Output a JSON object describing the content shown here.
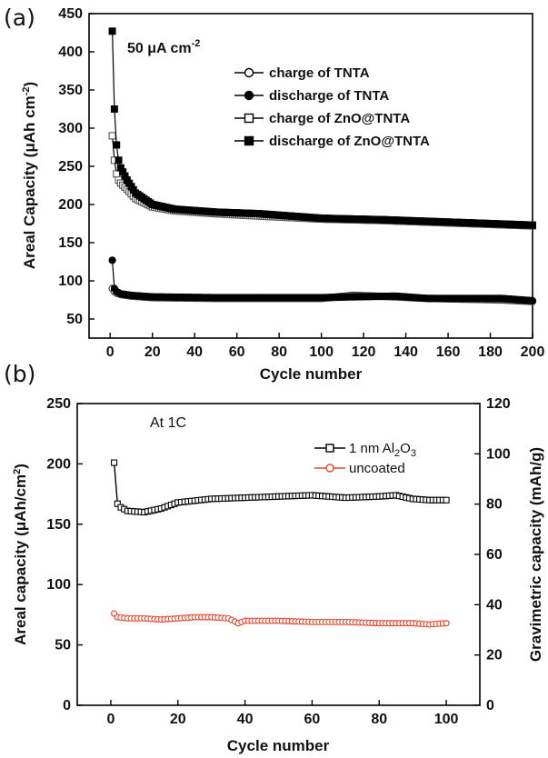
{
  "panel_labels": {
    "a": "(a)",
    "b": "(b)"
  },
  "chart_data": [
    {
      "type": "scatter",
      "panel": "(a)",
      "annotation": "50 μA cm-2",
      "xlabel": "Cycle number",
      "ylabel": "Areal Capacity (μAh cm-2)",
      "xlim": [
        -10,
        200
      ],
      "ylim": [
        25,
        450
      ],
      "xticks": [
        0,
        20,
        40,
        60,
        80,
        100,
        120,
        140,
        160,
        180,
        200
      ],
      "yticks": [
        50,
        100,
        150,
        200,
        250,
        300,
        350,
        400,
        450
      ],
      "grid": false,
      "legend_position": "top-right",
      "series": [
        {
          "name": "charge of TNTA",
          "marker": "open-circle",
          "x": [
            1,
            2,
            3,
            5,
            10,
            20,
            50,
            100,
            115,
            135,
            150,
            185,
            200
          ],
          "y": [
            90,
            86,
            84,
            82,
            80,
            78,
            77,
            77,
            81,
            79,
            77,
            75,
            73
          ]
        },
        {
          "name": "discharge of TNTA",
          "marker": "filled-circle",
          "x": [
            1,
            2,
            3,
            5,
            10,
            20,
            50,
            100,
            115,
            135,
            150,
            185,
            200
          ],
          "y": [
            127,
            90,
            86,
            83,
            81,
            79,
            78,
            78,
            79,
            80,
            77,
            77,
            74
          ]
        },
        {
          "name": "charge of ZnO@TNTA",
          "marker": "open-square",
          "x": [
            1,
            2,
            3,
            4,
            5,
            8,
            12,
            20,
            30,
            50,
            70,
            100,
            130,
            160,
            200
          ],
          "y": [
            290,
            258,
            240,
            232,
            228,
            220,
            208,
            197,
            192,
            188,
            185,
            181,
            179,
            176,
            172
          ]
        },
        {
          "name": "discharge of ZnO@TNTA",
          "marker": "filled-square",
          "x": [
            1,
            2,
            3,
            4,
            5,
            8,
            12,
            20,
            30,
            50,
            70,
            100,
            130,
            160,
            200
          ],
          "y": [
            427,
            325,
            278,
            258,
            248,
            232,
            215,
            200,
            194,
            190,
            188,
            182,
            180,
            177,
            173
          ]
        }
      ]
    },
    {
      "type": "line",
      "panel": "(b)",
      "annotation": "At 1C",
      "xlabel": "Cycle number",
      "ylabel": "Areal capacity (μAh/cm2)",
      "ylabel_right": "Gravimetric capacity (mAh/g)",
      "xlim": [
        -10,
        110
      ],
      "ylim": [
        0,
        250
      ],
      "ylim_right": [
        0,
        120
      ],
      "xticks": [
        0,
        20,
        40,
        60,
        80,
        100
      ],
      "yticks": [
        0,
        50,
        100,
        150,
        200,
        250
      ],
      "yticks_right": [
        0,
        20,
        40,
        60,
        80,
        100,
        120
      ],
      "grid": false,
      "legend_position": "top-right",
      "series": [
        {
          "name": "1 nm Al2O3",
          "color": "#000000",
          "marker": "open-square",
          "x": [
            1,
            2,
            3,
            5,
            10,
            15,
            20,
            30,
            40,
            50,
            60,
            70,
            80,
            85,
            90,
            95,
            100
          ],
          "y": [
            201,
            167,
            164,
            161,
            160,
            163,
            168,
            171,
            172,
            173,
            174,
            172,
            173,
            174,
            171,
            170,
            170
          ]
        },
        {
          "name": "uncoated",
          "color": "#e8452c",
          "marker": "open-circle",
          "x": [
            1,
            2,
            5,
            10,
            15,
            20,
            25,
            30,
            35,
            38,
            40,
            45,
            50,
            60,
            70,
            80,
            90,
            95,
            100
          ],
          "y": [
            76,
            73,
            72,
            72,
            71,
            72,
            73,
            73,
            72,
            68,
            70,
            70,
            70,
            69,
            69,
            68,
            68,
            67,
            68
          ]
        }
      ]
    }
  ]
}
